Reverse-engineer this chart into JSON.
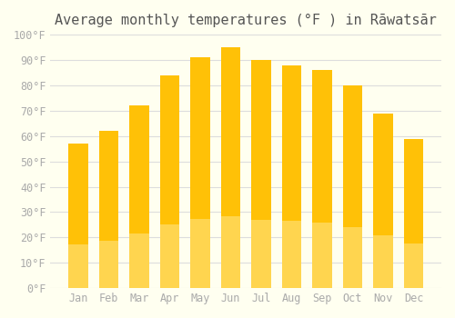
{
  "title": "Average monthly temperatures (°F ) in Rāwatsār",
  "months": [
    "Jan",
    "Feb",
    "Mar",
    "Apr",
    "May",
    "Jun",
    "Jul",
    "Aug",
    "Sep",
    "Oct",
    "Nov",
    "Dec"
  ],
  "values": [
    57,
    62,
    72,
    84,
    91,
    95,
    90,
    88,
    86,
    80,
    69,
    59
  ],
  "bar_color_top": "#FFC107",
  "bar_color_bottom": "#FFD54F",
  "ylim": [
    0,
    100
  ],
  "yticks": [
    0,
    10,
    20,
    30,
    40,
    50,
    60,
    70,
    80,
    90,
    100
  ],
  "ytick_labels": [
    "0°F",
    "10°F",
    "20°F",
    "30°F",
    "40°F",
    "50°F",
    "60°F",
    "70°F",
    "80°F",
    "90°F",
    "100°F"
  ],
  "bg_color": "#FFFFF0",
  "grid_color": "#DDDDDD",
  "title_fontsize": 11,
  "tick_fontsize": 8.5
}
